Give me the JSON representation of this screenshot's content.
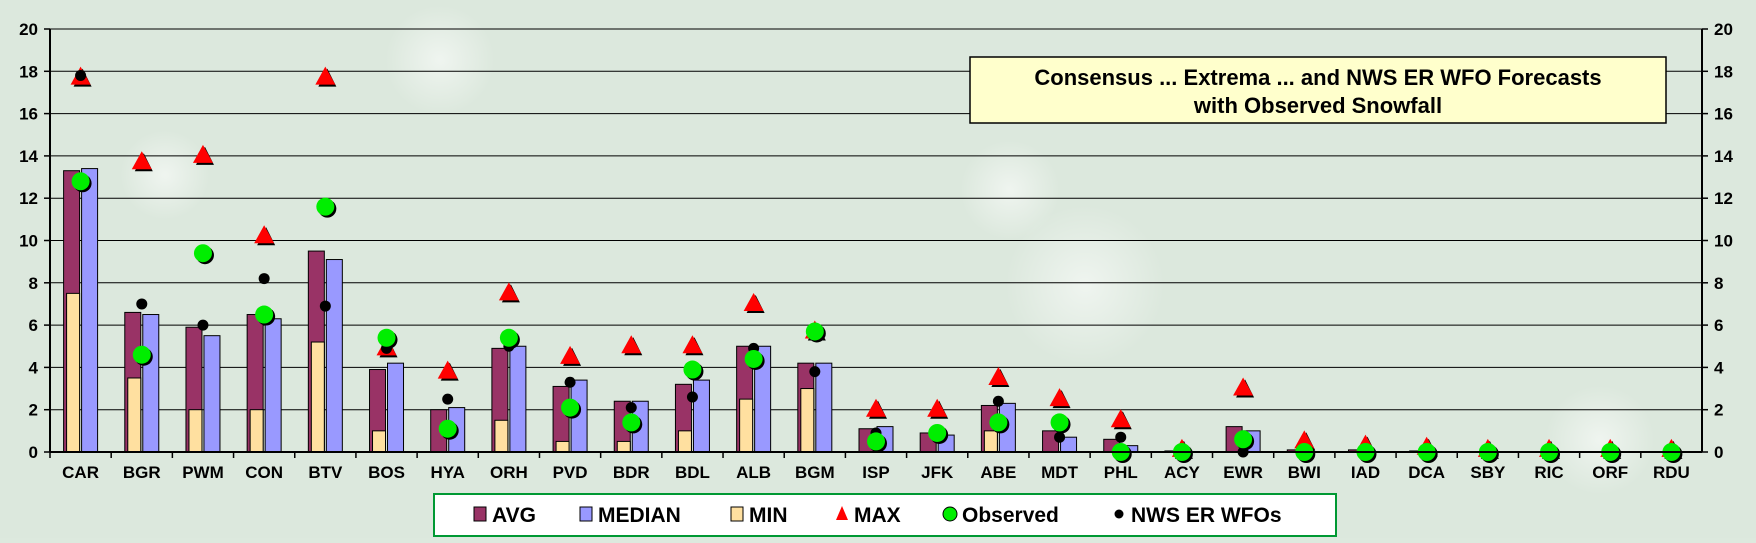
{
  "chart_data": {
    "type": "bar",
    "title_lines": [
      "Consensus ... Extrema ... and NWS ER WFO Forecasts",
      "with Observed Snowfall"
    ],
    "categories": [
      "CAR",
      "BGR",
      "PWM",
      "CON",
      "BTV",
      "BOS",
      "HYA",
      "ORH",
      "PVD",
      "BDR",
      "BDL",
      "ALB",
      "BGM",
      "ISP",
      "JFK",
      "ABE",
      "MDT",
      "PHL",
      "ACY",
      "EWR",
      "BWI",
      "IAD",
      "DCA",
      "SBY",
      "RIC",
      "ORF",
      "RDU"
    ],
    "ylim": [
      0,
      20
    ],
    "yticks": [
      "0",
      "2",
      "4",
      "6",
      "8",
      "10",
      "12",
      "14",
      "16",
      "18",
      "20"
    ],
    "grid": true,
    "legend_position": "bottom",
    "series": [
      {
        "name": "AVG",
        "kind": "bar",
        "color": "#993366",
        "values": [
          13.3,
          6.6,
          5.9,
          6.5,
          9.5,
          3.9,
          2.0,
          4.9,
          3.1,
          2.4,
          3.2,
          5.0,
          4.2,
          1.1,
          0.9,
          2.2,
          1.0,
          0.6,
          0.05,
          1.2,
          0.1,
          0.1,
          0.05,
          0.0,
          0.0,
          0.0,
          0.0
        ]
      },
      {
        "name": "MEDIAN",
        "kind": "bar",
        "color": "#9999ff",
        "values": [
          13.4,
          6.5,
          5.5,
          6.3,
          9.1,
          4.2,
          2.1,
          5.0,
          3.4,
          2.4,
          3.4,
          5.0,
          4.2,
          1.2,
          0.8,
          2.3,
          0.7,
          0.3,
          0.0,
          1.0,
          0.0,
          0.0,
          0.0,
          0.0,
          0.0,
          0.0,
          0.0
        ]
      },
      {
        "name": "MIN",
        "kind": "bar",
        "color": "#ffe0a0",
        "values": [
          7.5,
          3.5,
          2.0,
          2.0,
          5.2,
          1.0,
          0.0,
          1.5,
          0.5,
          0.5,
          1.0,
          2.5,
          3.0,
          0.0,
          0.0,
          1.0,
          0.0,
          0.0,
          0.0,
          0.0,
          0.0,
          0.0,
          0.0,
          0.0,
          0.0,
          0.0,
          0.0
        ]
      },
      {
        "name": "MAX",
        "kind": "triangle",
        "color": "#ff0000",
        "values": [
          17.7,
          13.7,
          14.0,
          10.2,
          17.7,
          4.9,
          3.8,
          7.5,
          4.5,
          5.0,
          5.0,
          7.0,
          5.7,
          2.0,
          2.0,
          3.5,
          2.5,
          1.5,
          0.1,
          3.0,
          0.5,
          0.3,
          0.2,
          0.1,
          0.1,
          0.1,
          0.1
        ]
      },
      {
        "name": "Observed",
        "kind": "circle",
        "color": "#00ee00",
        "values": [
          12.8,
          4.6,
          9.4,
          6.5,
          11.6,
          5.4,
          1.1,
          5.4,
          2.1,
          1.4,
          3.9,
          4.4,
          5.7,
          0.5,
          0.9,
          1.4,
          1.4,
          0.0,
          0.0,
          0.6,
          0.0,
          0.0,
          0.0,
          0.0,
          0.0,
          0.0,
          0.0
        ]
      },
      {
        "name": "NWS ER WFOs",
        "kind": "dot",
        "color": "#000000",
        "values": [
          17.8,
          7.0,
          6.0,
          8.2,
          6.9,
          4.9,
          2.5,
          5.0,
          3.3,
          2.1,
          2.6,
          4.9,
          3.8,
          0.9,
          0.8,
          2.4,
          0.7,
          0.7,
          0.0,
          0.0,
          0.0,
          0.0,
          0.0,
          0.0,
          0.0,
          0.0,
          0.0
        ]
      }
    ]
  }
}
